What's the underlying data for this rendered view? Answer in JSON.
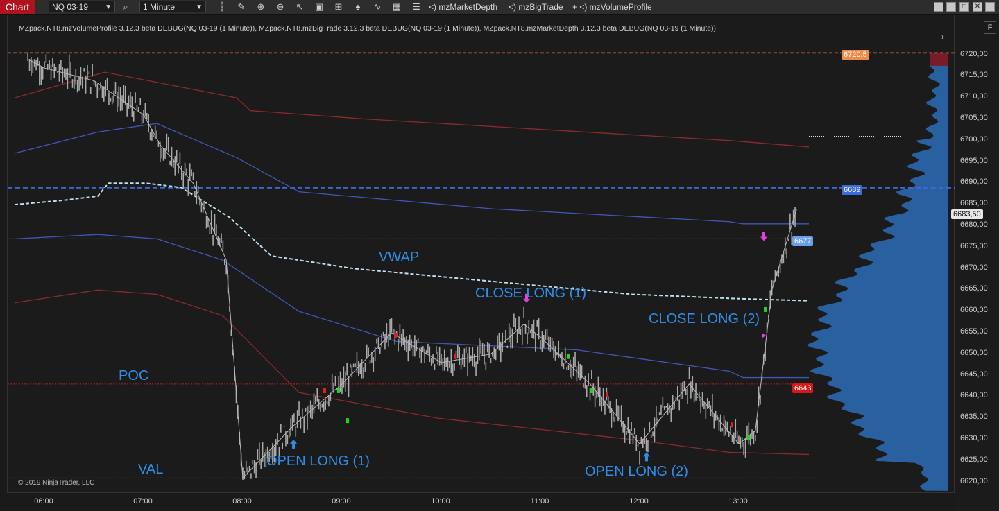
{
  "toolbar": {
    "app_tab": "Chart",
    "instrument": "NQ 03-19",
    "interval": "1 Minute",
    "indicators": [
      "<) mzMarketDepth",
      "<) mzBigTrade",
      "+ <) mzVolumeProfile"
    ]
  },
  "chart": {
    "indicator_label": "MZpack.NT8.mzVolumeProfile 3.12.3 beta DEBUG(NQ 03-19 (1 Minute)), MZpack.NT8.mzBigTrade 3.12.3 beta DEBUG(NQ 03-19 (1 Minute)), MZpack.NT8.mzMarketDepth 3.12.3 beta DEBUG(NQ 03-19 (1 Minute))",
    "copyright": "© 2019 NinjaTrader, LLC",
    "annotations": {
      "vwap": "VWAP",
      "poc": "POC",
      "val": "VAL",
      "open_long_1": "OPEN LONG (1)",
      "close_long_1": "CLOSE LONG (1)",
      "open_long_2": "OPEN LONG (2)",
      "close_long_2": "CLOSE LONG (2)"
    },
    "price_tags": {
      "top": "6720,5",
      "blue": "6689",
      "last": "6683,50",
      "level_6677": "6677",
      "poc": "6643"
    },
    "y_labels": [
      "6720,00",
      "6715,00",
      "6710,00",
      "6705,00",
      "6700,00",
      "6695,00",
      "6690,00",
      "6685,00",
      "6680,00",
      "6675,00",
      "6670,00",
      "6665,00",
      "6660,00",
      "6655,00",
      "6650,00",
      "6645,00",
      "6640,00",
      "6635,00",
      "6630,00",
      "6625,00",
      "6620,00"
    ],
    "x_labels": [
      "06:00",
      "07:00",
      "08:00",
      "09:00",
      "10:00",
      "11:00",
      "12:00",
      "13:00"
    ],
    "colors": {
      "accent_red": "#b0121e",
      "annotation_blue": "#2f8fe8",
      "profile_blue": "#2a64a8",
      "vwap": "#bfe3f0"
    }
  },
  "chart_data": {
    "type": "line",
    "instrument": "NQ 03-19",
    "interval": "1 Minute",
    "x": [
      "05:50",
      "06:00",
      "06:30",
      "07:00",
      "07:10",
      "07:30",
      "07:50",
      "08:00",
      "08:30",
      "09:00",
      "09:30",
      "10:00",
      "10:30",
      "10:50",
      "11:00",
      "11:30",
      "12:00",
      "12:30",
      "13:00",
      "13:10",
      "13:20",
      "13:35"
    ],
    "series": [
      {
        "values": [
          6719,
          6717,
          6714,
          6706,
          6699,
          6690,
          6672,
          6621,
          6633,
          6643,
          6655,
          6648,
          6650,
          6657,
          6654,
          6643,
          6629,
          6643,
          6629,
          6632,
          6665,
          6684
        ]
      }
    ],
    "levels": {
      "top": 6720.5,
      "blue": 6689,
      "level_6677": 6677,
      "poc": 6643
    },
    "ylim": [
      6618,
      6724
    ]
  }
}
